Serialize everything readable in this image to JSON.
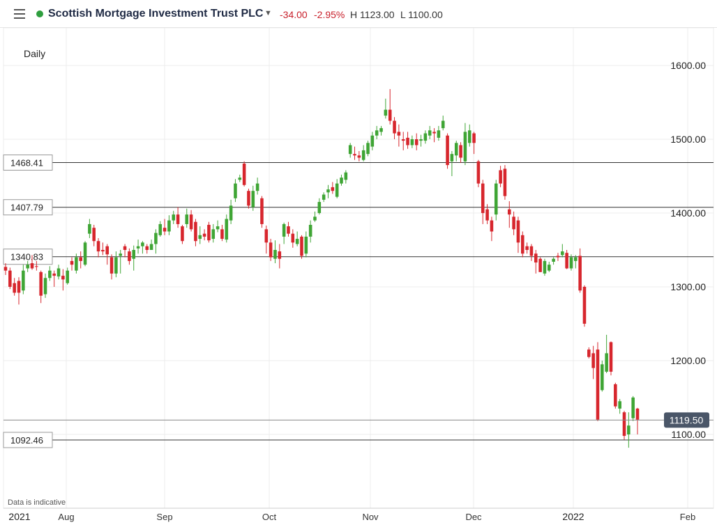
{
  "header": {
    "menu_icon": "hamburger-menu-icon",
    "status_color": "#2e9e3e",
    "instrument": "Scottish Mortgage Investment Trust PLC",
    "change_abs": "-34.00",
    "change_pct": "-2.95%",
    "high": "H 1123.00",
    "low": "L 1100.00",
    "dropdown_icon": "chevron-down-icon"
  },
  "chart_meta": {
    "interval_label": "Daily",
    "disclaimer": "Data is indicative"
  },
  "chart_data": {
    "type": "candlestick",
    "y_ticks": [
      1100,
      1200,
      1300,
      1400,
      1500,
      1600
    ],
    "y_tick_labels": [
      "1100.00",
      "1200.00",
      "1300.00",
      "1400.00",
      "1500.00",
      "1600.00"
    ],
    "ylim": [
      995,
      1690
    ],
    "x_labels": [
      "2021",
      "Aug",
      "Sep",
      "Oct",
      "Nov",
      "Dec",
      "2022",
      "Feb"
    ],
    "current_price": "1119.50",
    "current_value": 1119.5,
    "levels": [
      {
        "label": "1468.41",
        "value": 1468.41
      },
      {
        "label": "1407.79",
        "value": 1407.79
      },
      {
        "label": "1340.83",
        "value": 1340.83
      },
      {
        "label": "1092.46",
        "value": 1092.46
      }
    ],
    "colors": {
      "up": "#3fa535",
      "down": "#d7262d",
      "grid": "#ececec",
      "level": "#333333",
      "price_tag": "#4a5668"
    },
    "candles": [
      [
        1327,
        1322,
        1332,
        1316
      ],
      [
        1322,
        1300,
        1326,
        1297
      ],
      [
        1305,
        1292,
        1312,
        1288
      ],
      [
        1308,
        1292,
        1313,
        1276
      ],
      [
        1295,
        1322,
        1330,
        1290
      ],
      [
        1325,
        1330,
        1335,
        1320
      ],
      [
        1332,
        1325,
        1343,
        1323
      ],
      [
        1328,
        1327,
        1335,
        1322
      ],
      [
        1320,
        1288,
        1322,
        1278
      ],
      [
        1290,
        1312,
        1318,
        1285
      ],
      [
        1312,
        1322,
        1328,
        1308
      ],
      [
        1318,
        1315,
        1322,
        1300
      ],
      [
        1314,
        1325,
        1330,
        1310
      ],
      [
        1315,
        1310,
        1324,
        1295
      ],
      [
        1305,
        1322,
        1326,
        1303
      ],
      [
        1335,
        1330,
        1340,
        1322
      ],
      [
        1322,
        1340,
        1345,
        1318
      ],
      [
        1340,
        1335,
        1348,
        1325
      ],
      [
        1330,
        1360,
        1362,
        1328
      ],
      [
        1372,
        1385,
        1392,
        1366
      ],
      [
        1380,
        1362,
        1384,
        1355
      ],
      [
        1362,
        1348,
        1366,
        1340
      ],
      [
        1350,
        1348,
        1360,
        1343
      ],
      [
        1355,
        1344,
        1358,
        1330
      ],
      [
        1340,
        1318,
        1344,
        1310
      ],
      [
        1318,
        1340,
        1348,
        1313
      ],
      [
        1342,
        1345,
        1350,
        1318
      ],
      [
        1355,
        1350,
        1358,
        1340
      ],
      [
        1348,
        1335,
        1352,
        1330
      ],
      [
        1338,
        1350,
        1356,
        1322
      ],
      [
        1352,
        1355,
        1364,
        1345
      ],
      [
        1355,
        1360,
        1362,
        1345
      ],
      [
        1355,
        1350,
        1358,
        1345
      ],
      [
        1350,
        1358,
        1364,
        1350
      ],
      [
        1358,
        1373,
        1378,
        1345
      ],
      [
        1370,
        1385,
        1389,
        1368
      ],
      [
        1380,
        1375,
        1392,
        1370
      ],
      [
        1375,
        1390,
        1397,
        1370
      ],
      [
        1390,
        1398,
        1403,
        1385
      ],
      [
        1398,
        1385,
        1408,
        1380
      ],
      [
        1382,
        1362,
        1384,
        1358
      ],
      [
        1385,
        1398,
        1406,
        1380
      ],
      [
        1398,
        1378,
        1404,
        1375
      ],
      [
        1388,
        1362,
        1392,
        1355
      ],
      [
        1365,
        1370,
        1382,
        1358
      ],
      [
        1372,
        1368,
        1378,
        1363
      ],
      [
        1384,
        1363,
        1388,
        1360
      ],
      [
        1365,
        1378,
        1385,
        1360
      ],
      [
        1378,
        1382,
        1390,
        1374
      ],
      [
        1378,
        1365,
        1384,
        1362
      ],
      [
        1364,
        1392,
        1398,
        1360
      ],
      [
        1390,
        1410,
        1418,
        1385
      ],
      [
        1420,
        1440,
        1446,
        1415
      ],
      [
        1445,
        1448,
        1452,
        1442
      ],
      [
        1467,
        1438,
        1470,
        1436
      ],
      [
        1430,
        1410,
        1433,
        1406
      ],
      [
        1408,
        1430,
        1437,
        1403
      ],
      [
        1430,
        1440,
        1448,
        1425
      ],
      [
        1420,
        1385,
        1423,
        1380
      ],
      [
        1378,
        1360,
        1383,
        1345
      ],
      [
        1360,
        1340,
        1365,
        1335
      ],
      [
        1338,
        1350,
        1363,
        1332
      ],
      [
        1348,
        1338,
        1358,
        1325
      ],
      [
        1368,
        1385,
        1387,
        1358
      ],
      [
        1382,
        1372,
        1388,
        1368
      ],
      [
        1372,
        1360,
        1378,
        1353
      ],
      [
        1358,
        1365,
        1375,
        1355
      ],
      [
        1368,
        1342,
        1370,
        1338
      ],
      [
        1345,
        1368,
        1375,
        1340
      ],
      [
        1368,
        1384,
        1390,
        1360
      ],
      [
        1390,
        1395,
        1402,
        1388
      ],
      [
        1400,
        1415,
        1420,
        1398
      ],
      [
        1418,
        1425,
        1428,
        1415
      ],
      [
        1428,
        1432,
        1438,
        1420
      ],
      [
        1435,
        1430,
        1442,
        1426
      ],
      [
        1422,
        1440,
        1446,
        1420
      ],
      [
        1440,
        1448,
        1452,
        1437
      ],
      [
        1445,
        1455,
        1458,
        1440
      ],
      [
        1480,
        1492,
        1495,
        1475
      ],
      [
        1480,
        1478,
        1490,
        1472
      ],
      [
        1478,
        1475,
        1484,
        1470
      ],
      [
        1472,
        1485,
        1492,
        1470
      ],
      [
        1480,
        1495,
        1498,
        1477
      ],
      [
        1490,
        1505,
        1510,
        1485
      ],
      [
        1505,
        1512,
        1518,
        1500
      ],
      [
        1510,
        1515,
        1518,
        1505
      ],
      [
        1532,
        1540,
        1555,
        1528
      ],
      [
        1540,
        1525,
        1568,
        1520
      ],
      [
        1525,
        1508,
        1530,
        1500
      ],
      [
        1510,
        1505,
        1520,
        1490
      ],
      [
        1500,
        1498,
        1510,
        1485
      ],
      [
        1502,
        1492,
        1510,
        1487
      ],
      [
        1492,
        1500,
        1505,
        1488
      ],
      [
        1500,
        1492,
        1508,
        1485
      ],
      [
        1498,
        1500,
        1506,
        1490
      ],
      [
        1498,
        1508,
        1512,
        1494
      ],
      [
        1505,
        1512,
        1518,
        1500
      ],
      [
        1510,
        1508,
        1515,
        1496
      ],
      [
        1502,
        1512,
        1518,
        1498
      ],
      [
        1515,
        1525,
        1532,
        1512
      ],
      [
        1505,
        1465,
        1508,
        1460
      ],
      [
        1470,
        1480,
        1484,
        1450
      ],
      [
        1478,
        1495,
        1498,
        1470
      ],
      [
        1492,
        1475,
        1496,
        1468
      ],
      [
        1470,
        1510,
        1522,
        1465
      ],
      [
        1495,
        1512,
        1520,
        1490
      ],
      [
        1508,
        1495,
        1510,
        1480
      ],
      [
        1470,
        1440,
        1472,
        1435
      ],
      [
        1440,
        1400,
        1445,
        1385
      ],
      [
        1405,
        1390,
        1412,
        1385
      ],
      [
        1390,
        1375,
        1395,
        1362
      ],
      [
        1398,
        1440,
        1445,
        1390
      ],
      [
        1458,
        1440,
        1464,
        1435
      ],
      [
        1460,
        1423,
        1465,
        1418
      ],
      [
        1405,
        1398,
        1416,
        1380
      ],
      [
        1395,
        1378,
        1402,
        1370
      ],
      [
        1390,
        1360,
        1395,
        1346
      ],
      [
        1370,
        1345,
        1375,
        1340
      ],
      [
        1355,
        1350,
        1360,
        1345
      ],
      [
        1355,
        1342,
        1358,
        1335
      ],
      [
        1345,
        1333,
        1350,
        1318
      ],
      [
        1338,
        1320,
        1340,
        1320
      ],
      [
        1318,
        1335,
        1338,
        1315
      ],
      [
        1322,
        1330,
        1334,
        1320
      ],
      [
        1334,
        1338,
        1340,
        1330
      ],
      [
        1342,
        1340,
        1346,
        1335
      ],
      [
        1343,
        1348,
        1358,
        1340
      ],
      [
        1346,
        1325,
        1350,
        1324
      ],
      [
        1325,
        1340,
        1344,
        1322
      ],
      [
        1335,
        1340,
        1343,
        1325
      ],
      [
        1342,
        1295,
        1352,
        1292
      ],
      [
        1300,
        1250,
        1302,
        1246
      ],
      [
        1215,
        1205,
        1218,
        1203
      ],
      [
        1210,
        1190,
        1220,
        1175
      ],
      [
        1215,
        1120,
        1225,
        1118
      ],
      [
        1160,
        1195,
        1200,
        1158
      ],
      [
        1185,
        1210,
        1235,
        1183
      ],
      [
        1225,
        1185,
        1226,
        1180
      ],
      [
        1168,
        1138,
        1170,
        1135
      ],
      [
        1135,
        1145,
        1148,
        1128
      ],
      [
        1130,
        1098,
        1132,
        1093
      ],
      [
        1100,
        1112,
        1130,
        1082
      ],
      [
        1122,
        1150,
        1152,
        1118
      ],
      [
        1135,
        1120,
        1136,
        1100
      ]
    ]
  }
}
